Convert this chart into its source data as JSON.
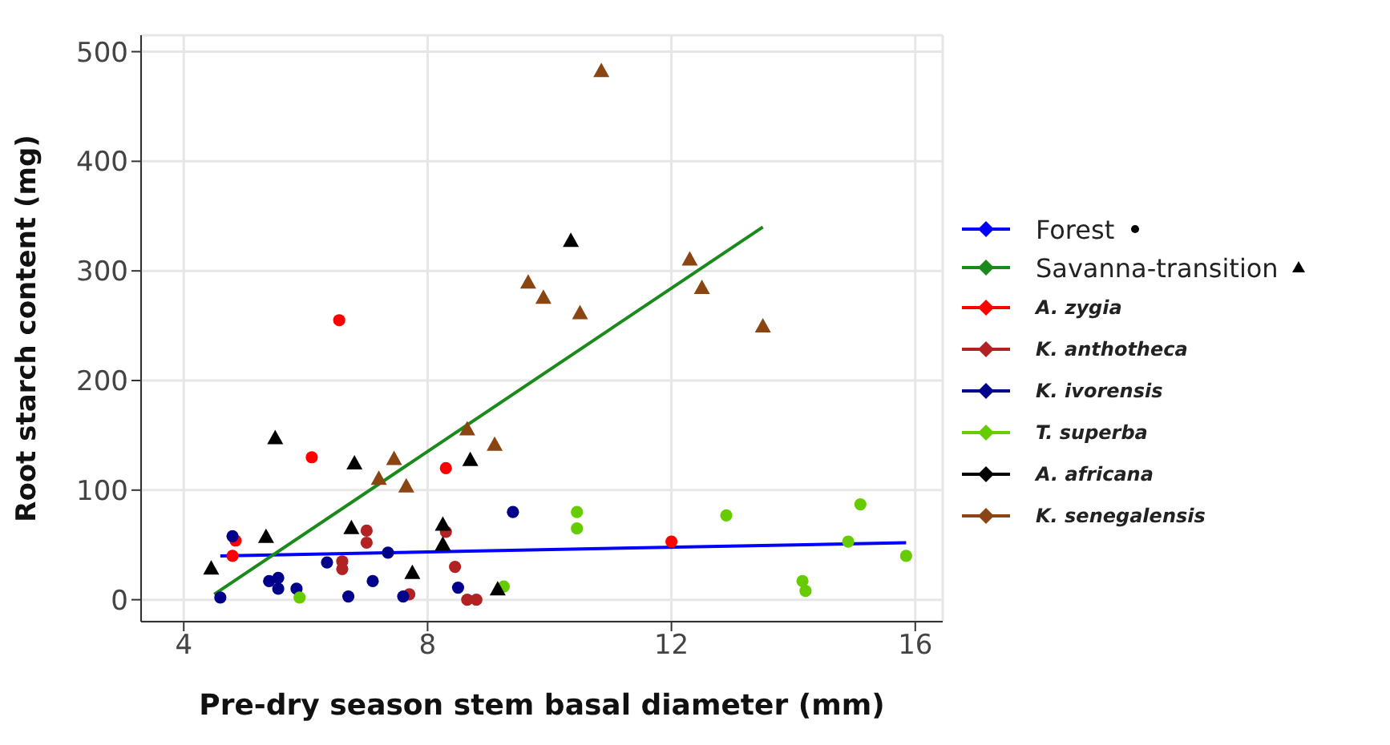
{
  "chart_data": {
    "type": "scatter",
    "xlabel": "Pre-dry season stem basal diameter (mm)",
    "ylabel": "Root starch content (mg)",
    "xlim": [
      3.3,
      16.45
    ],
    "xticks": [
      4,
      8,
      12,
      16
    ],
    "ylim": [
      -20,
      515
    ],
    "yticks": [
      0,
      100,
      200,
      300,
      400,
      500
    ],
    "grid": true,
    "legend": "right",
    "series": [
      {
        "name": "Forest",
        "type": "line",
        "color": "#0000ff",
        "x": [
          4.6,
          15.85
        ],
        "values": [
          40,
          52
        ]
      },
      {
        "name": "Savanna-transition",
        "type": "line",
        "color": "#1a8a1a",
        "x": [
          4.5,
          13.5
        ],
        "values": [
          5,
          340
        ]
      },
      {
        "name": "A. zygia",
        "color": "#ff0000",
        "marker": "circle",
        "x": [
          6.55,
          6.1,
          4.85,
          4.8,
          8.3,
          12.0
        ],
        "values": [
          255,
          130,
          54,
          40,
          120,
          53
        ]
      },
      {
        "name": "K. anthotheca",
        "color": "#b22222",
        "marker": "circle",
        "x": [
          7.0,
          7.0,
          6.6,
          6.6,
          8.3,
          8.45,
          8.65,
          8.8,
          7.7
        ],
        "values": [
          63,
          52,
          35,
          28,
          62,
          30,
          0,
          0,
          5
        ]
      },
      {
        "name": "K. ivorensis",
        "color": "#00008b",
        "marker": "circle",
        "x": [
          4.6,
          4.8,
          5.4,
          5.55,
          5.55,
          5.85,
          6.35,
          6.7,
          7.1,
          7.35,
          7.6,
          9.4,
          8.5
        ],
        "values": [
          2,
          58,
          17,
          20,
          10,
          10,
          34,
          3,
          17,
          43,
          3,
          80,
          11
        ]
      },
      {
        "name": "T. superba",
        "color": "#66cc00",
        "marker": "circle",
        "x": [
          5.9,
          9.25,
          10.45,
          10.45,
          12.9,
          15.1,
          14.9,
          15.85,
          14.15,
          14.2
        ],
        "values": [
          2,
          12,
          80,
          65,
          77,
          87,
          53,
          40,
          17,
          8
        ]
      },
      {
        "name": "A. africana",
        "color": "#000000",
        "marker": "triangle",
        "x": [
          4.45,
          5.35,
          5.5,
          6.8,
          6.75,
          7.75,
          8.7,
          8.25,
          8.25,
          9.15,
          10.35
        ],
        "values": [
          28,
          57,
          147,
          124,
          65,
          24,
          127,
          68,
          50,
          9,
          327
        ]
      },
      {
        "name": "K. senegalensis",
        "color": "#8b4513",
        "marker": "triangle",
        "x": [
          7.2,
          7.45,
          7.65,
          8.65,
          9.1,
          9.65,
          9.9,
          10.5,
          10.85,
          12.3,
          12.5,
          13.5
        ],
        "values": [
          110,
          128,
          103,
          155,
          141,
          289,
          275,
          261,
          482,
          310,
          284,
          249
        ]
      }
    ]
  }
}
